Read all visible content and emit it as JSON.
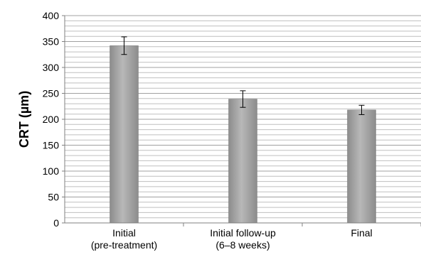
{
  "chart_data": {
    "type": "bar",
    "ylabel": "CRT (µm)",
    "ylim": [
      0,
      400
    ],
    "y_ticks": [
      "0",
      "50",
      "100",
      "150",
      "200",
      "250",
      "300",
      "350",
      "400"
    ],
    "categories": [
      [
        "Initial",
        "(pre-treatment)"
      ],
      [
        "Initial follow-up",
        "(6–8 weeks)"
      ],
      [
        "Final"
      ]
    ],
    "values": [
      342,
      239,
      218
    ],
    "errors": [
      17,
      16,
      9
    ],
    "grid": true,
    "bar_color": "#a6a6a6",
    "grid_color": "#bfbfbf"
  }
}
